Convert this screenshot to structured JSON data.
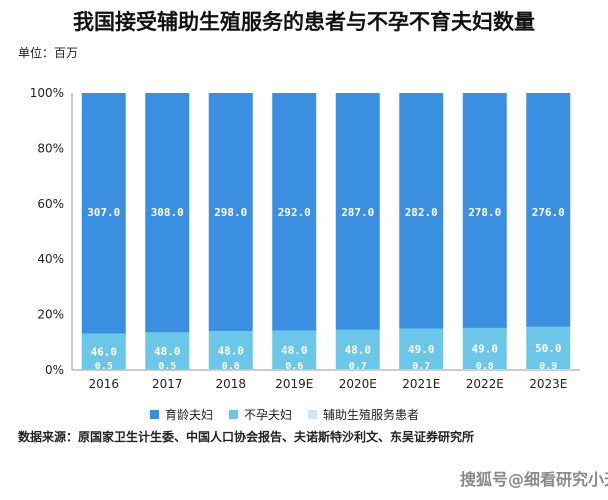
{
  "title": "我国接受辅助生殖服务的患者与不孕不育夫妇数量",
  "unit": "单位：百万",
  "source": "数据来源：原国家卫生计生委、中国人口协会报告、夫诺斯特沙利文、东吴证券研究所",
  "watermark": "搜狐号@细看研究小天下",
  "colors": {
    "fertile": "#3a8fe0",
    "infertile": "#6cc6e8",
    "art": "#cfe6f7"
  },
  "chart_data": {
    "type": "bar",
    "stacked": "percent",
    "categories": [
      "2016",
      "2017",
      "2018",
      "2019E",
      "2020E",
      "2021E",
      "2022E",
      "2023E"
    ],
    "series": [
      {
        "name": "辅助生殖服务患者",
        "values": [
          0.5,
          0.5,
          0.6,
          0.6,
          0.7,
          0.7,
          0.8,
          0.9
        ],
        "labels": [
          "0.5",
          "0.5",
          "0.6",
          "0.6",
          "0.7",
          "0.7",
          "0.8",
          "0.9"
        ]
      },
      {
        "name": "不孕夫妇",
        "values": [
          46.0,
          48.0,
          48.0,
          48.0,
          48.0,
          49.0,
          49.0,
          50.0
        ],
        "labels": [
          "46.0",
          "48.0",
          "48.0",
          "48.0",
          "48.0",
          "49.0",
          "49.0",
          "50.0"
        ]
      },
      {
        "name": "育龄夫妇",
        "values": [
          307.0,
          308.0,
          298.0,
          292.0,
          287.0,
          282.0,
          278.0,
          276.0
        ],
        "labels": [
          "307.0",
          "308.0",
          "298.0",
          "292.0",
          "287.0",
          "282.0",
          "278.0",
          "276.0"
        ]
      }
    ],
    "yticks": [
      "0%",
      "20%",
      "40%",
      "60%",
      "80%",
      "100%"
    ],
    "ylim": [
      0,
      100
    ],
    "legend": [
      "育龄夫妇",
      "不孕夫妇",
      "辅助生殖服务患者"
    ],
    "legend_position": "bottom",
    "grid": false
  }
}
